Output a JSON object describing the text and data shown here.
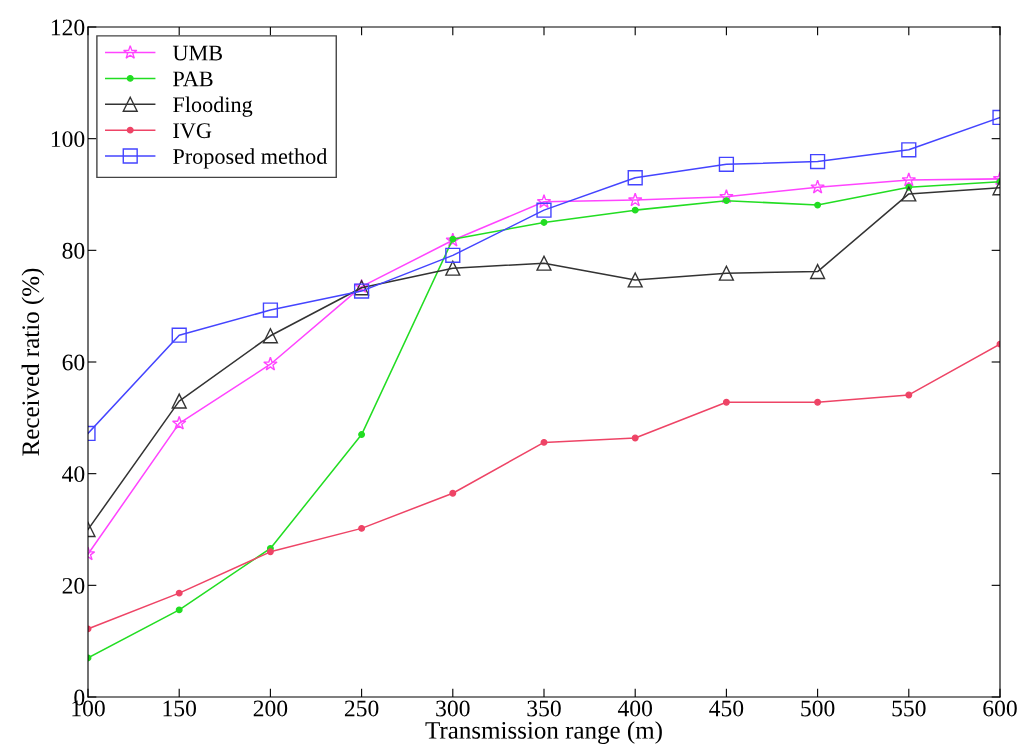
{
  "chart_data": {
    "type": "line",
    "xlabel": "Transmission range (m)",
    "ylabel": "Received ratio (%)",
    "x": [
      100,
      150,
      200,
      250,
      300,
      350,
      400,
      450,
      500,
      550,
      600
    ],
    "series": [
      {
        "name": "UMB",
        "color": "#ff44ff",
        "marker": "star",
        "values": [
          25.6,
          49,
          59.6,
          73.5,
          81.8,
          88.7,
          89,
          89.6,
          91.3,
          92.6,
          92.8
        ]
      },
      {
        "name": "PAB",
        "color": "#22dd22",
        "marker": "circle",
        "values": [
          7,
          15.6,
          26.6,
          47,
          82,
          85,
          87.2,
          88.9,
          88.1,
          91.3,
          92.3
        ]
      },
      {
        "name": "Flooding",
        "color": "#333333",
        "marker": "triangle",
        "values": [
          30,
          53,
          64.7,
          73.3,
          76.8,
          77.7,
          74.7,
          75.9,
          76.2,
          90.1,
          91.2
        ]
      },
      {
        "name": "IVG",
        "color": "#ee4466",
        "marker": "circle",
        "values": [
          12.2,
          18.6,
          26,
          30.2,
          36.5,
          45.6,
          46.4,
          52.8,
          52.8,
          54.1,
          63.2
        ]
      },
      {
        "name": "Proposed method",
        "color": "#4444ff",
        "marker": "square",
        "values": [
          47.2,
          64.8,
          69.3,
          72.7,
          79.1,
          87.2,
          93,
          95.4,
          95.9,
          98,
          103.8
        ]
      }
    ],
    "xlim": [
      100,
      600
    ],
    "xticks": [
      100,
      150,
      200,
      250,
      300,
      350,
      400,
      450,
      500,
      550,
      600
    ],
    "ylim": [
      0,
      120
    ],
    "yticks": [
      0,
      20,
      40,
      60,
      80,
      100,
      120
    ],
    "grid": false,
    "legend": "top left",
    "line_style": "solid"
  }
}
